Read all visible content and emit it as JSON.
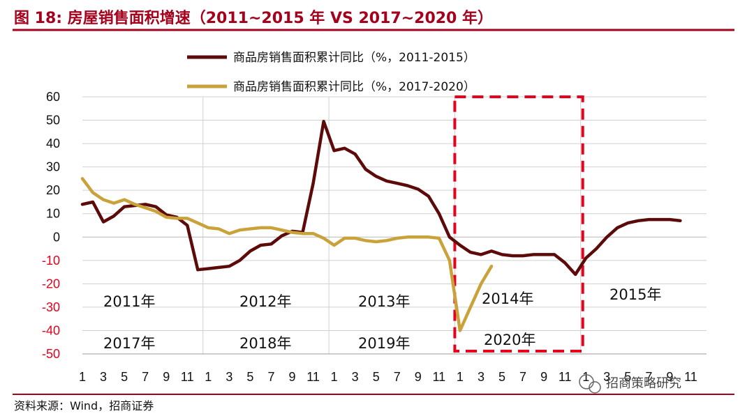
{
  "figure": {
    "title": "图 18:  房屋销售面积增速（2011~2015 年  VS 2017~2020 年）",
    "source": "资料来源：Wind，招商证券",
    "watermark": "招商策略研究"
  },
  "colors": {
    "brand_red": "#a5001c",
    "series_a": "#5c0a0a",
    "series_b": "#c9a23a",
    "negative_tick": "#e8001c",
    "highlight_box": "#e8001c"
  },
  "chart_data": {
    "type": "line",
    "ylim": [
      -50,
      60
    ],
    "yticks": [
      -50,
      -40,
      -30,
      -20,
      -10,
      0,
      10,
      20,
      30,
      40,
      50,
      60
    ],
    "xticks": [
      "1",
      "3",
      "5",
      "7",
      "9",
      "11",
      "1",
      "3",
      "5",
      "7",
      "9",
      "11",
      "1",
      "3",
      "5",
      "7",
      "9",
      "11",
      "1",
      "3",
      "5",
      "7",
      "9",
      "11",
      "1",
      "3",
      "5",
      "7",
      "9",
      "11"
    ],
    "months_total": 60,
    "year_labels": {
      "top": [
        "2011年",
        "2012年",
        "2013年",
        "2014年",
        "2015年"
      ],
      "bottom": [
        "2017年",
        "2018年",
        "2019年",
        "2020年"
      ]
    },
    "series": [
      {
        "name": "商品房销售面积累计同比（%，2011-2015）",
        "start_index": 0,
        "values": [
          14.0,
          15.0,
          6.5,
          9.0,
          13.0,
          13.5,
          14.0,
          13.0,
          9.5,
          8.5,
          5.0,
          -14.0,
          -13.5,
          -13.0,
          -12.5,
          -10.0,
          -6.0,
          -3.5,
          -3.0,
          0.5,
          2.5,
          2.0,
          23.0,
          49.5,
          37.0,
          38.0,
          35.5,
          29.0,
          26.0,
          24.0,
          23.0,
          22.0,
          20.5,
          17.5,
          10.0,
          0.0,
          -3.5,
          -6.5,
          -7.5,
          -6.0,
          -7.5,
          -8.0,
          -8.0,
          -7.5,
          -7.5,
          -7.5,
          -11.0,
          -16.0,
          -9.0,
          -5.0,
          0.0,
          4.0,
          6.0,
          7.0,
          7.5,
          7.5,
          7.5,
          7.0
        ]
      },
      {
        "name": "商品房销售面积累计同比（%，2017-2020）",
        "start_index": 0,
        "values": [
          25.0,
          19.0,
          16.0,
          14.5,
          16.0,
          14.0,
          12.5,
          11.0,
          8.5,
          8.0,
          8.0,
          6.0,
          4.0,
          3.5,
          1.5,
          3.0,
          3.5,
          4.0,
          4.0,
          3.0,
          2.0,
          1.5,
          1.5,
          -0.5,
          -3.5,
          -0.5,
          -0.5,
          -1.5,
          -2.0,
          -1.5,
          -0.5,
          0.0,
          0.0,
          0.0,
          -0.5,
          -10.0,
          -40.0,
          -30.0,
          -20.0,
          -12.5
        ]
      }
    ]
  }
}
